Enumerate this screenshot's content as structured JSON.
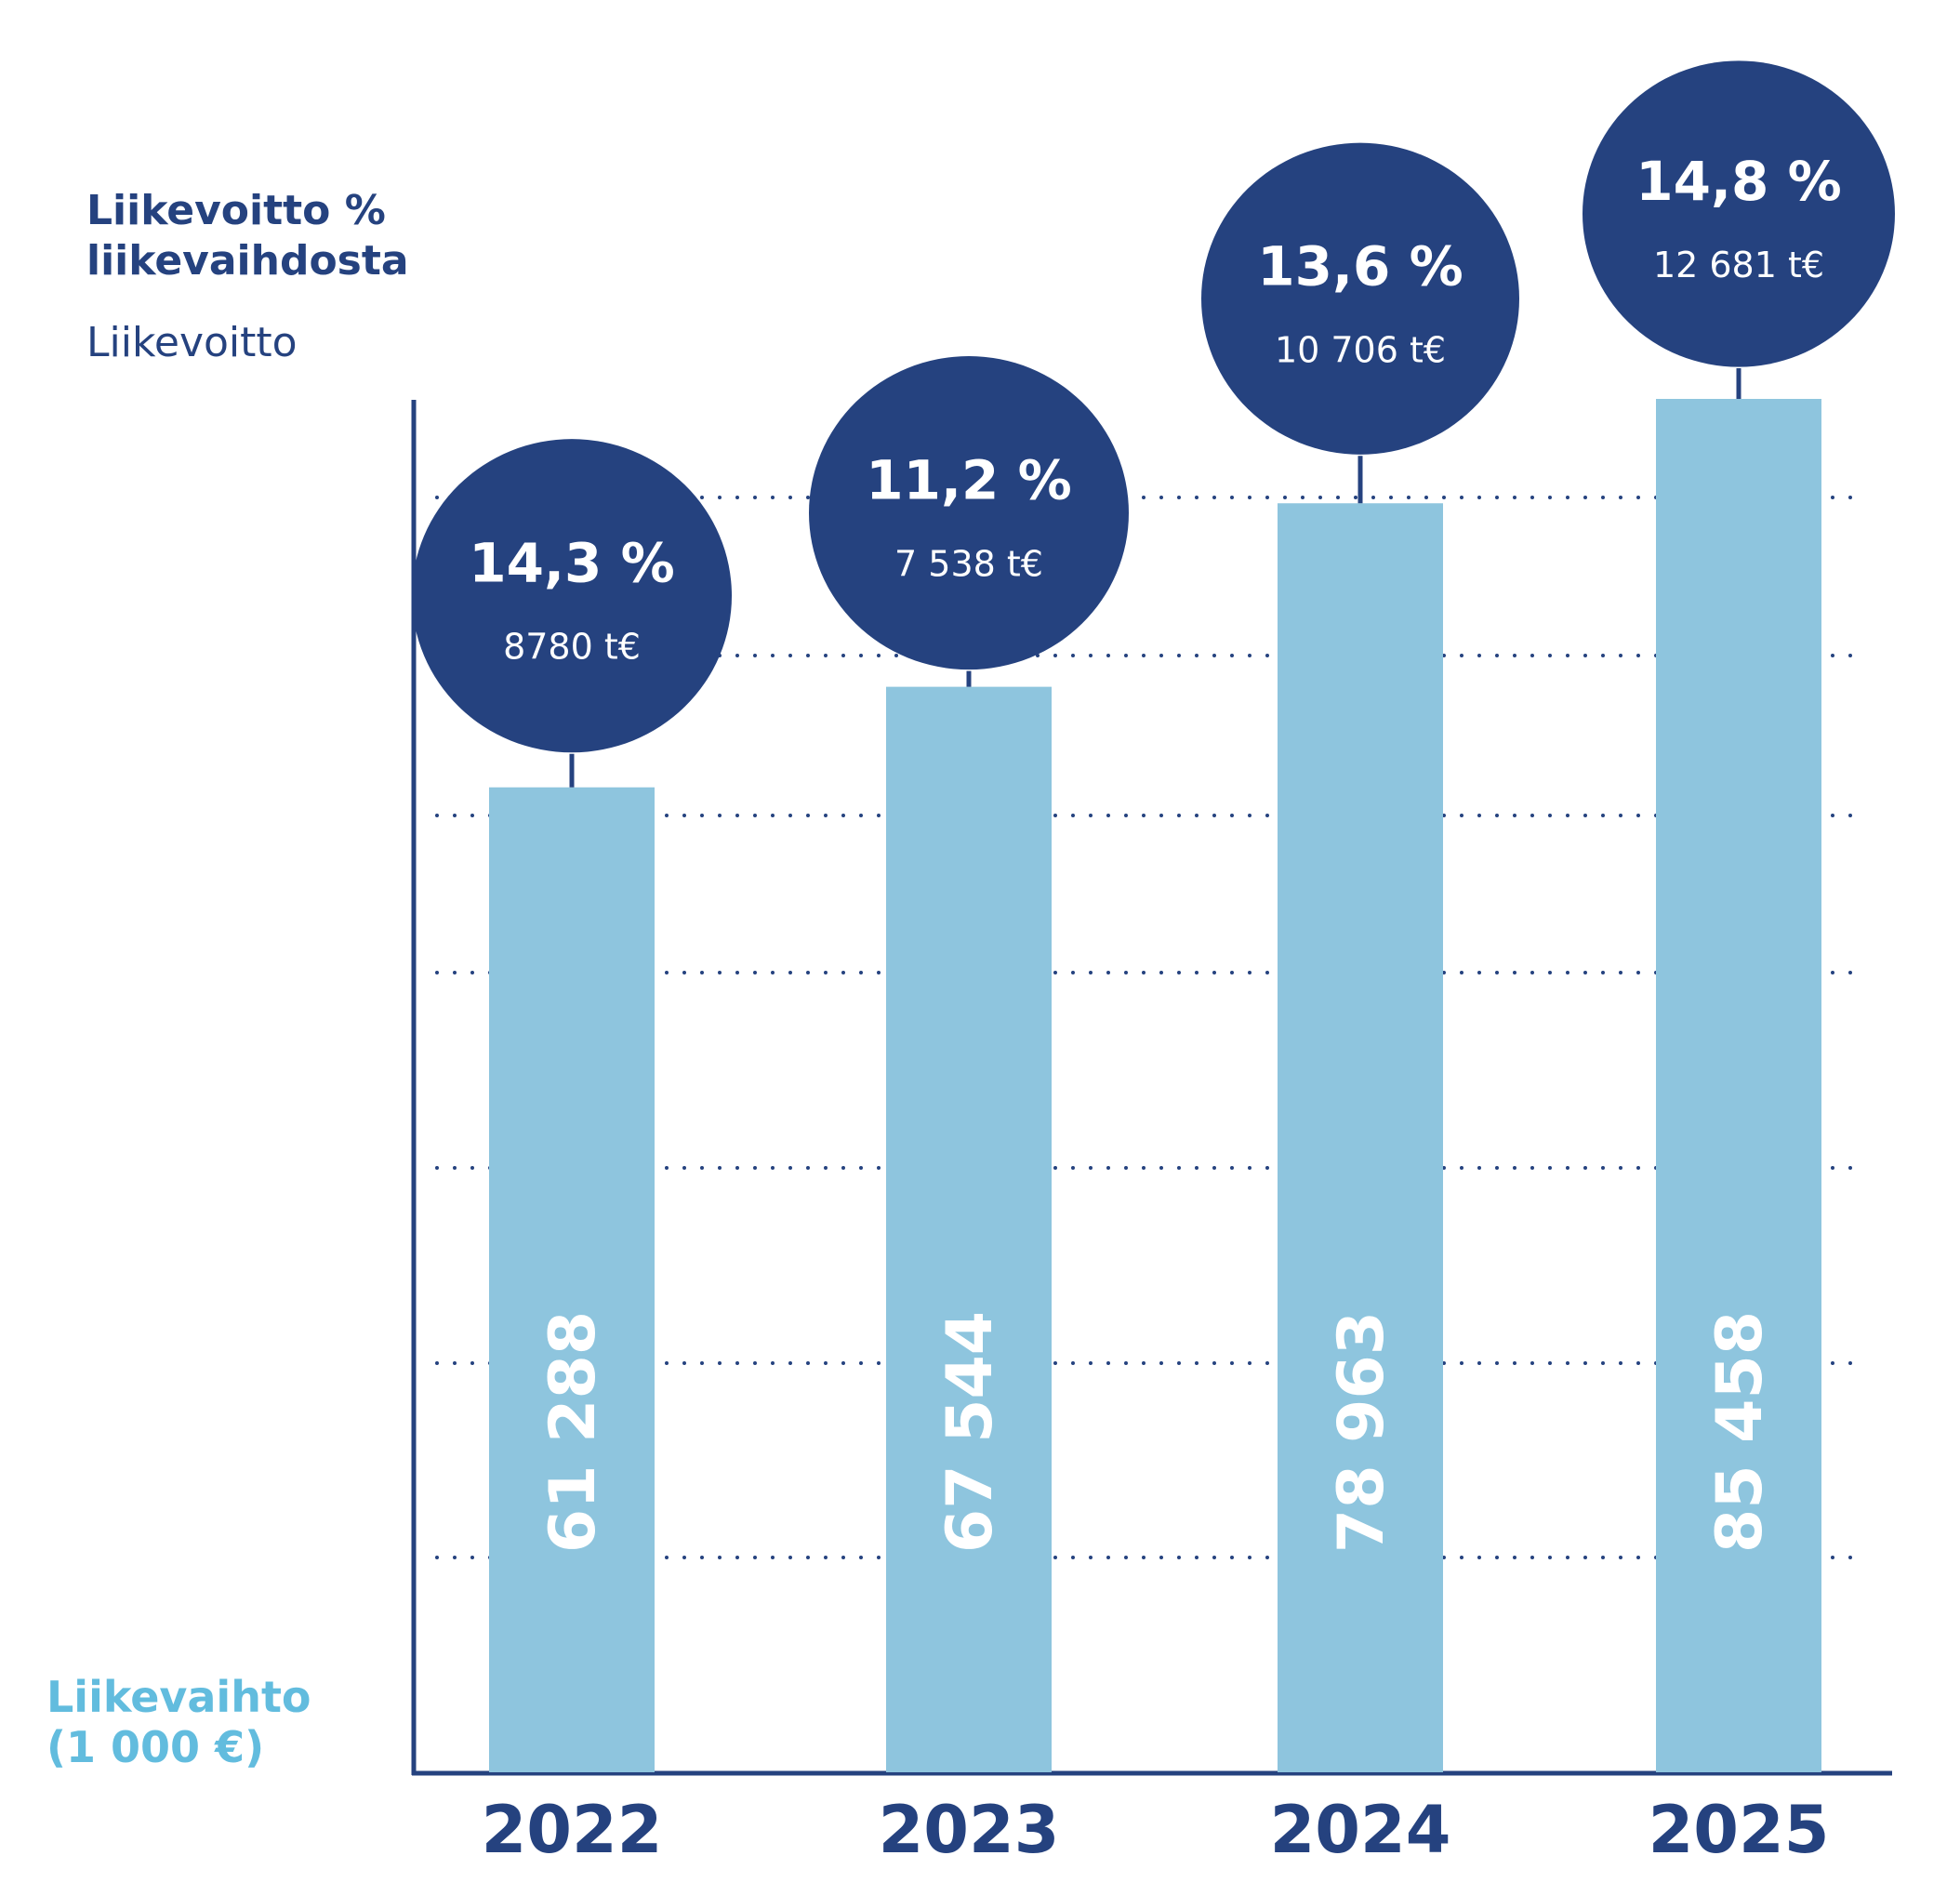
{
  "chart_data": {
    "type": "bar",
    "categories": [
      "2022",
      "2023",
      "2024",
      "2025"
    ],
    "series": [
      {
        "name": "Liikevaihto (1 000 €)",
        "values": [
          61288,
          67544,
          78963,
          85458
        ],
        "labels": [
          "61 288",
          "67 544",
          "78 963",
          "85 458"
        ]
      }
    ],
    "bubbles": {
      "percent": [
        "14,3 %",
        "11,2 %",
        "13,6 %",
        "14,8 %"
      ],
      "profit": [
        "8780 t€",
        "7 538 t€",
        "10 706 t€",
        "12 681 t€"
      ]
    },
    "legend": {
      "percent_label": "Liikevoitto % liikevaihdosta",
      "profit_label": "Liikevoitto"
    },
    "ylabel": "Liikevaihto (1 000 €)",
    "grid": true,
    "colors": {
      "bar": "#8ec5de",
      "bubble": "#25427f",
      "axis": "#25427f",
      "ylabel": "#62bcde",
      "bar_text": "#ffffff"
    }
  }
}
